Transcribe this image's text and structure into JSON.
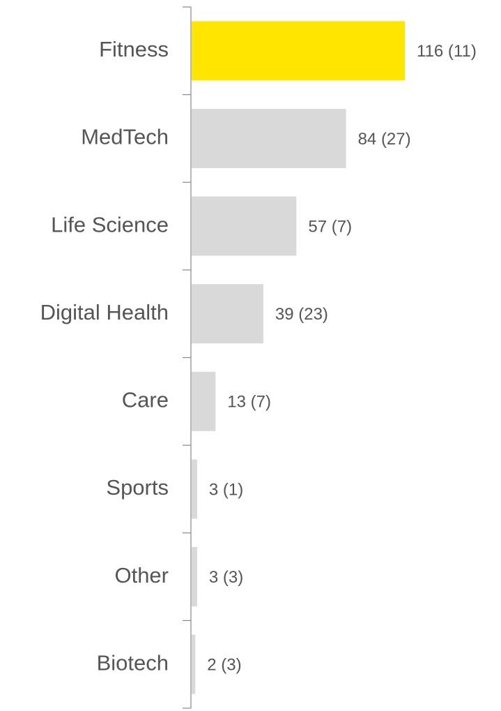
{
  "chart_data": {
    "type": "bar",
    "orientation": "horizontal",
    "categories": [
      "Fitness",
      "MedTech",
      "Life Science",
      "Digital Health",
      "Care",
      "Sports",
      "Other",
      "Biotech"
    ],
    "values": [
      116,
      84,
      57,
      39,
      13,
      3,
      3,
      2
    ],
    "value_labels": [
      "116 (11)",
      "84 (27)",
      "57 (7)",
      "39 (23)",
      "13 (7)",
      "3 (1)",
      "3 (3)",
      "2 (3)"
    ],
    "colors": [
      "#ffe600",
      "#d9d9d9",
      "#d9d9d9",
      "#d9d9d9",
      "#d9d9d9",
      "#d9d9d9",
      "#d9d9d9",
      "#d9d9d9"
    ]
  }
}
